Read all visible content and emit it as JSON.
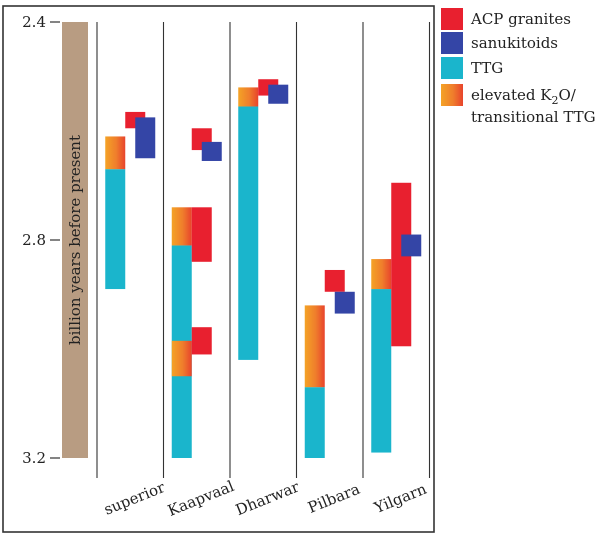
{
  "chart_data": {
    "type": "bar",
    "subtype": "floating-range",
    "ylabel": "billion years before present",
    "ylim": [
      2.4,
      3.2
    ],
    "yticks": [
      {
        "value": 2.4,
        "label": "2.4"
      },
      {
        "value": 2.8,
        "label": "2.8"
      },
      {
        "value": 3.2,
        "label": "3.2"
      }
    ],
    "categories": [
      "superior",
      "Kaapvaal",
      "Dharwar",
      "Pilbara",
      "Yilgarn"
    ],
    "series": [
      {
        "name": "ACP granites",
        "color": "#e8202f",
        "ranges": [
          {
            "category": "superior",
            "start": 2.565,
            "end": 2.595
          },
          {
            "category": "Kaapvaal",
            "start": 2.595,
            "end": 2.635
          },
          {
            "category": "Kaapvaal",
            "start": 2.74,
            "end": 2.84
          },
          {
            "category": "Kaapvaal",
            "start": 2.96,
            "end": 3.01
          },
          {
            "category": "Dharwar",
            "start": 2.505,
            "end": 2.535
          },
          {
            "category": "Pilbara",
            "start": 2.855,
            "end": 2.895
          },
          {
            "category": "Yilgarn",
            "start": 2.695,
            "end": 2.995
          }
        ]
      },
      {
        "name": "sanukitoids",
        "color": "#3445a6",
        "ranges": [
          {
            "category": "superior",
            "start": 2.575,
            "end": 2.65
          },
          {
            "category": "Kaapvaal",
            "start": 2.62,
            "end": 2.655
          },
          {
            "category": "Dharwar",
            "start": 2.515,
            "end": 2.55
          },
          {
            "category": "Pilbara",
            "start": 2.895,
            "end": 2.935
          },
          {
            "category": "Yilgarn",
            "start": 2.79,
            "end": 2.83
          }
        ]
      },
      {
        "name": "TTG",
        "color": "#1ab5cc",
        "ranges": [
          {
            "category": "superior",
            "start": 2.67,
            "end": 2.89
          },
          {
            "category": "Kaapvaal",
            "start": 2.81,
            "end": 3.2
          },
          {
            "category": "Dharwar",
            "start": 2.555,
            "end": 3.02
          },
          {
            "category": "Pilbara",
            "start": 3.07,
            "end": 3.2
          },
          {
            "category": "Yilgarn",
            "start": 2.89,
            "end": 3.19
          }
        ]
      },
      {
        "name": "elevated K2O/ transitional TTG",
        "color": "#f09a24",
        "ranges": [
          {
            "category": "superior",
            "start": 2.61,
            "end": 2.67
          },
          {
            "category": "Kaapvaal",
            "start": 2.74,
            "end": 2.81
          },
          {
            "category": "Kaapvaal",
            "start": 2.985,
            "end": 3.05
          },
          {
            "category": "Dharwar",
            "start": 2.52,
            "end": 2.555
          },
          {
            "category": "Pilbara",
            "start": 2.92,
            "end": 3.07
          },
          {
            "category": "Yilgarn",
            "start": 2.835,
            "end": 2.89
          }
        ]
      }
    ],
    "legend": {
      "placement": "right",
      "items": [
        {
          "label": "ACP granites",
          "color": "#e8202f"
        },
        {
          "label": "sanukitoids",
          "color": "#3445a6"
        },
        {
          "label": "TTG",
          "color": "#1ab5cc"
        },
        {
          "label_html_parts": [
            "elevated K",
            "2",
            "O/"
          ],
          "label_line2": "transitional TTG",
          "color": "#f09a24"
        }
      ]
    },
    "axis_bar_color": "#b89c82"
  }
}
